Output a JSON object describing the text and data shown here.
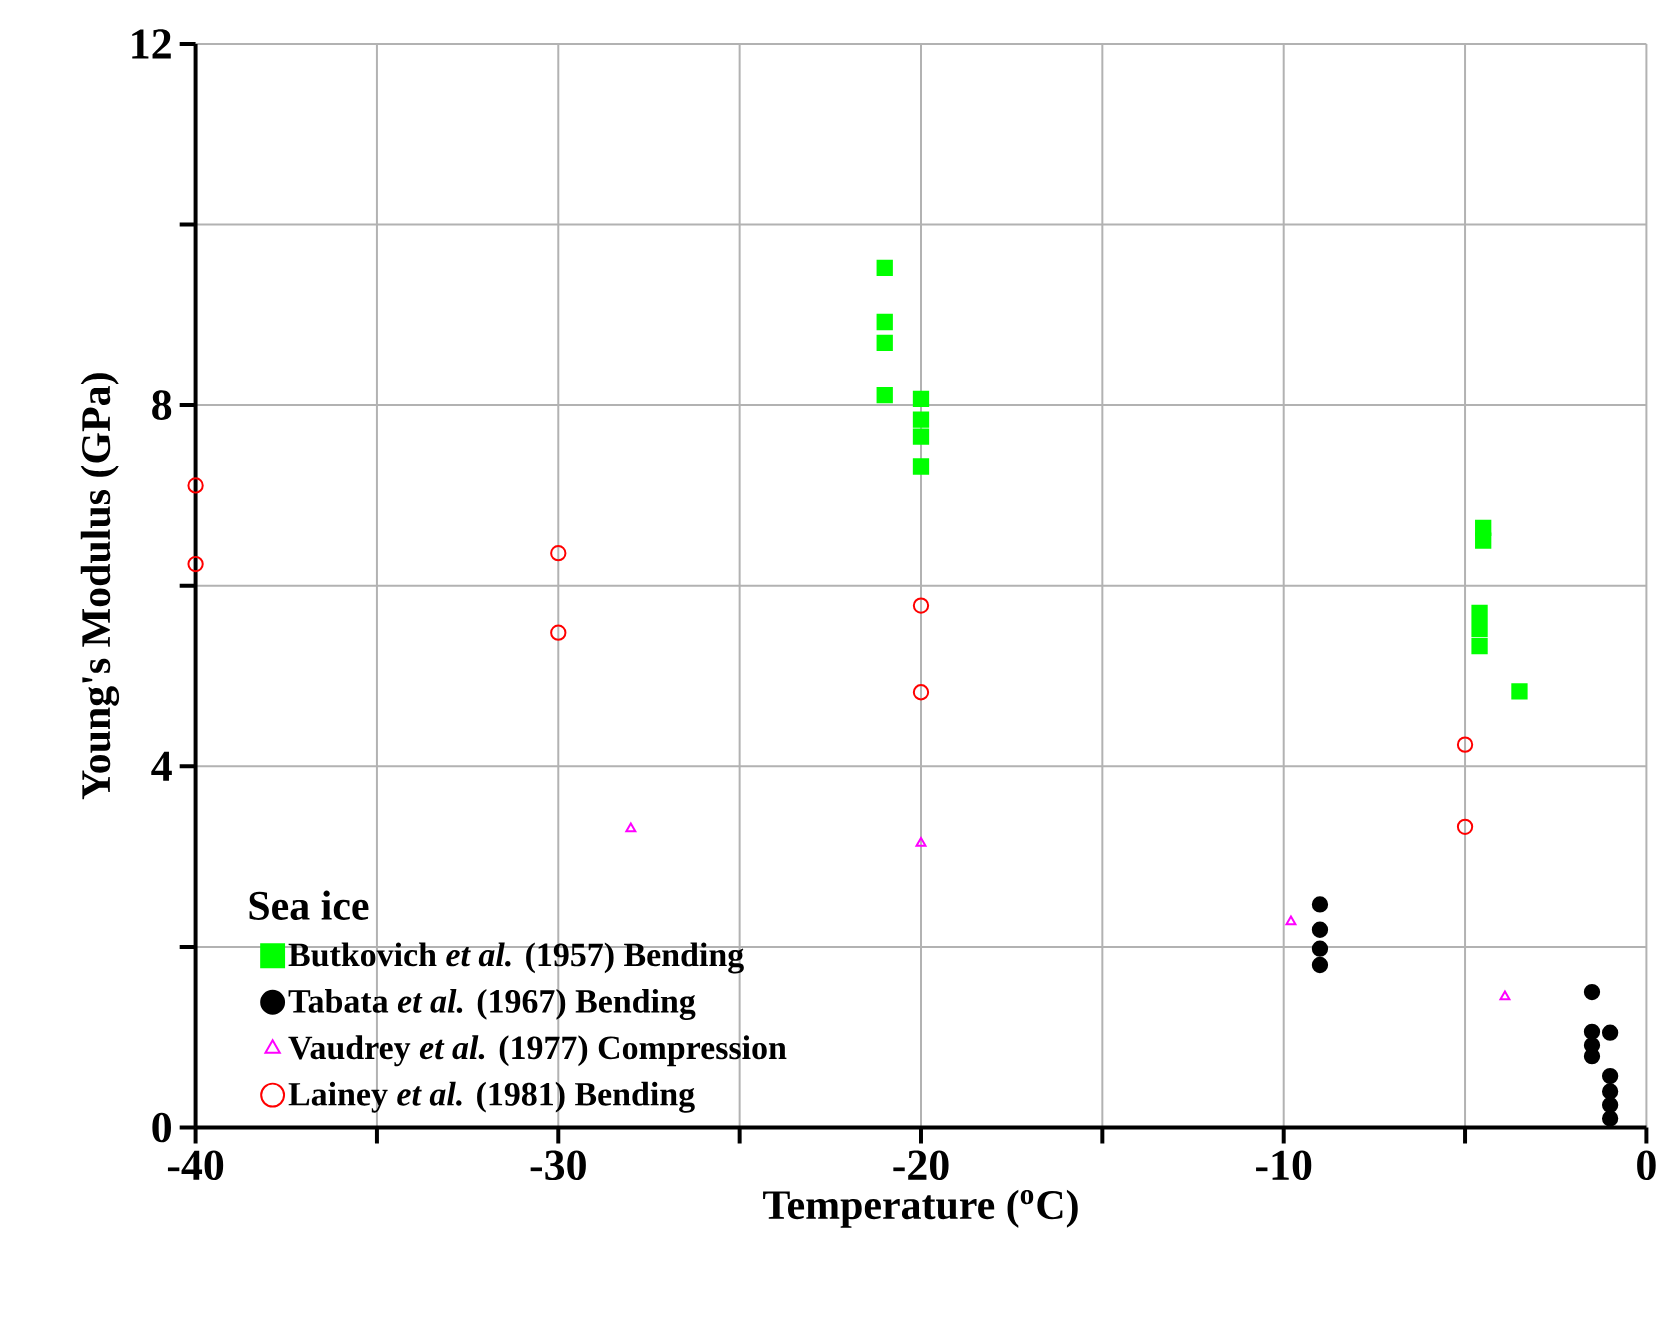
{
  "chart_data": {
    "type": "scatter",
    "xlabel": "Temperature ($^{o}$C)",
    "ylabel": "Young's Modulus (GPa)",
    "legend_title": "Sea ice",
    "xlim": [
      -40,
      0
    ],
    "xticks": [
      -40,
      {
        "value": -35,
        "label": null
      },
      -30,
      {
        "value": -25,
        "label": null
      },
      -20,
      {
        "value": -15,
        "label": null
      },
      -10,
      {
        "value": -5,
        "label": null
      },
      0
    ],
    "ylim": [
      0,
      12
    ],
    "yticks": [
      0,
      {
        "value": 2,
        "label": null
      },
      4,
      {
        "value": 6,
        "label": null
      },
      8,
      {
        "value": 10,
        "label": null
      },
      12
    ],
    "grid": true,
    "legend": "bottom left",
    "series": [
      {
        "name": "Butkovich *et al.* (1957) Bending",
        "color": "#00ff00",
        "marker": "square",
        "x": [
          -21,
          -21,
          -21,
          -21,
          -20,
          -20,
          -20,
          -20,
          -4.5,
          -4.5,
          -4.6,
          -4.6,
          -4.6,
          -3.5
        ],
        "values": [
          9.52,
          8.92,
          8.69,
          8.11,
          8.07,
          7.84,
          7.65,
          7.32,
          6.64,
          6.5,
          5.7,
          5.52,
          5.33,
          4.83
        ]
      },
      {
        "name": "Tabata *et al.* (1967) Bending",
        "color": "#000000",
        "marker": "circle",
        "x": [
          -9,
          -9,
          -9,
          -9,
          -1.5,
          -1.5,
          -1.5,
          -1.5,
          -1,
          -1,
          -1,
          -1,
          -1
        ],
        "values": [
          2.47,
          2.19,
          1.98,
          1.8,
          1.5,
          1.06,
          0.91,
          0.79,
          1.05,
          0.57,
          0.4,
          0.25,
          0.1
        ]
      },
      {
        "name": "Vaudrey *et al.* (1977) Compression",
        "color": "#ff00ff",
        "marker": "triangle",
        "x": [
          -28,
          -20,
          -9.8,
          -3.9
        ],
        "values": [
          3.31,
          3.15,
          2.28,
          1.45
        ]
      },
      {
        "name": "Lainey *et al.* (1981) Bending",
        "color": "#ff0000",
        "marker": "circle",
        "x": [
          -40,
          -40,
          -30,
          -30,
          -20,
          -20,
          -5,
          -5
        ],
        "values": [
          7.11,
          6.24,
          6.36,
          5.48,
          5.78,
          4.82,
          4.24,
          3.33
        ]
      }
    ]
  }
}
